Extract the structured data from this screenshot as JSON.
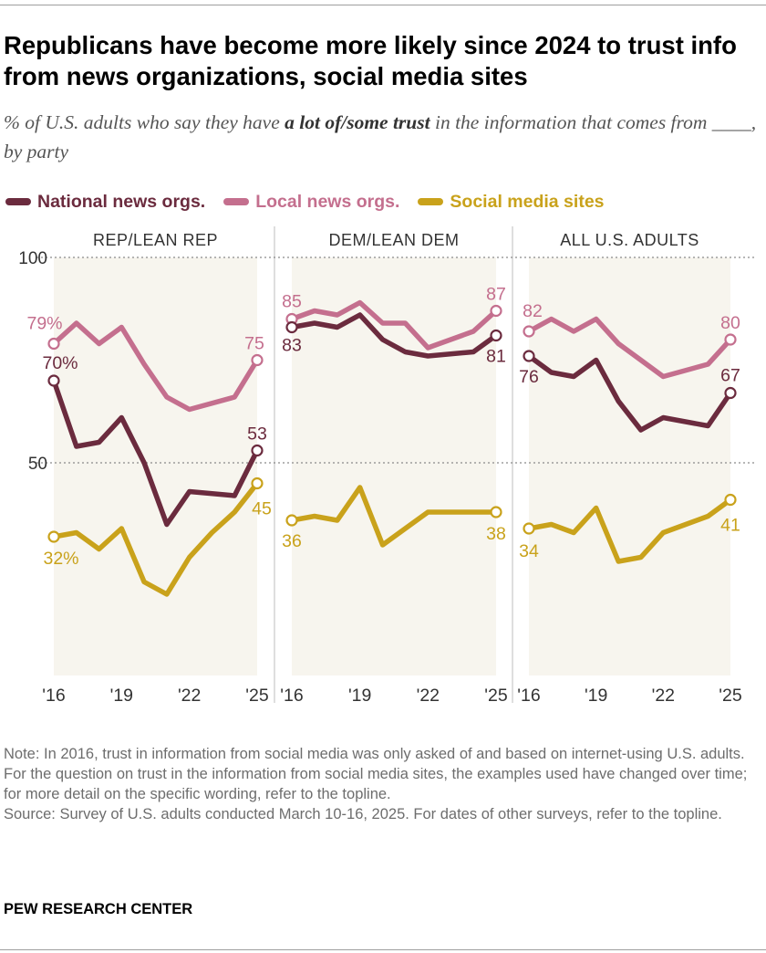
{
  "header": {
    "title": "Republicans have become more likely since 2024 to trust info from news organizations, social media sites",
    "subtitle_pre": "% of U.S. adults who say they have ",
    "subtitle_em": "a lot of/some trust",
    "subtitle_post": " in the information that comes from ____, by party"
  },
  "colors": {
    "national": "#6b2b3e",
    "local": "#c46f8e",
    "social": "#c9a21b",
    "panel_bg": "#f7f5ee",
    "axis_text": "#333333"
  },
  "legend": [
    {
      "name": "National news orgs.",
      "color": "#6b2b3e"
    },
    {
      "name": "Local news orgs.",
      "color": "#c46f8e"
    },
    {
      "name": "Social media sites",
      "color": "#c9a21b"
    }
  ],
  "chart_data": {
    "type": "line",
    "x_tick_labels": [
      "'16",
      "'19",
      "'22",
      "'25"
    ],
    "x_ticks": [
      2016,
      2019,
      2022,
      2025
    ],
    "xlim": [
      2016,
      2025
    ],
    "ylim": [
      0,
      100
    ],
    "y_ticks": [
      100,
      50
    ],
    "panels": [
      {
        "title": "REP/LEAN REP",
        "series": [
          {
            "key": "national",
            "name": "National news orgs.",
            "x": [
              2016,
              2017,
              2018,
              2019,
              2020,
              2021,
              2022,
              2024,
              2025
            ],
            "y": [
              70,
              54,
              55,
              61,
              50,
              35,
              43,
              42,
              53
            ],
            "first_label": "70%",
            "last_label": "53"
          },
          {
            "key": "local",
            "name": "Local news orgs.",
            "x": [
              2016,
              2017,
              2018,
              2019,
              2020,
              2021,
              2022,
              2024,
              2025
            ],
            "y": [
              79,
              84,
              79,
              83,
              74,
              66,
              63,
              66,
              75
            ],
            "first_label": "79%",
            "last_label": "75"
          },
          {
            "key": "social",
            "name": "Social media sites",
            "x": [
              2016,
              2017,
              2018,
              2019,
              2020,
              2021,
              2022,
              2023,
              2024,
              2025
            ],
            "y": [
              32,
              33,
              29,
              34,
              21,
              18,
              27,
              33,
              38,
              45
            ],
            "first_label": "32%",
            "last_label": "45"
          }
        ]
      },
      {
        "title": "DEM/LEAN DEM",
        "series": [
          {
            "key": "national",
            "name": "National news orgs.",
            "x": [
              2016,
              2017,
              2018,
              2019,
              2020,
              2021,
              2022,
              2024,
              2025
            ],
            "y": [
              83,
              84,
              83,
              86,
              80,
              77,
              76,
              77,
              81
            ],
            "first_label": "83",
            "last_label": "81"
          },
          {
            "key": "local",
            "name": "Local news orgs.",
            "x": [
              2016,
              2017,
              2018,
              2019,
              2020,
              2021,
              2022,
              2024,
              2025
            ],
            "y": [
              85,
              87,
              86,
              89,
              84,
              84,
              78,
              82,
              87
            ],
            "first_label": "85",
            "last_label": "87"
          },
          {
            "key": "social",
            "name": "Social media sites",
            "x": [
              2016,
              2017,
              2018,
              2019,
              2020,
              2021,
              2022,
              2023,
              2024,
              2025
            ],
            "y": [
              36,
              37,
              36,
              44,
              30,
              34,
              38,
              38,
              38,
              38
            ],
            "first_label": "36",
            "last_label": "38"
          }
        ]
      },
      {
        "title": "ALL U.S. ADULTS",
        "series": [
          {
            "key": "national",
            "name": "National news orgs.",
            "x": [
              2016,
              2017,
              2018,
              2019,
              2020,
              2021,
              2022,
              2024,
              2025
            ],
            "y": [
              76,
              72,
              71,
              75,
              65,
              58,
              61,
              59,
              67
            ],
            "first_label": "76",
            "last_label": "67"
          },
          {
            "key": "local",
            "name": "Local news orgs.",
            "x": [
              2016,
              2017,
              2018,
              2019,
              2020,
              2021,
              2022,
              2024,
              2025
            ],
            "y": [
              82,
              85,
              82,
              85,
              79,
              75,
              71,
              74,
              80
            ],
            "first_label": "82",
            "last_label": "80"
          },
          {
            "key": "social",
            "name": "Social media sites",
            "x": [
              2016,
              2017,
              2018,
              2019,
              2020,
              2021,
              2022,
              2023,
              2024,
              2025
            ],
            "y": [
              34,
              35,
              33,
              39,
              26,
              27,
              33,
              35,
              37,
              41
            ],
            "first_label": "34",
            "last_label": "41"
          }
        ]
      }
    ]
  },
  "notes": {
    "note": "Note: In 2016, trust in information from social media was only asked of and based on internet-using U.S. adults. For the question on trust in the information from social media sites, the examples used have changed over time; for more detail on the specific wording, refer to the topline.",
    "source": "Source: Survey of U.S. adults conducted March 10-16, 2025. For dates of other surveys, refer to the topline."
  },
  "brand": "PEW RESEARCH CENTER"
}
